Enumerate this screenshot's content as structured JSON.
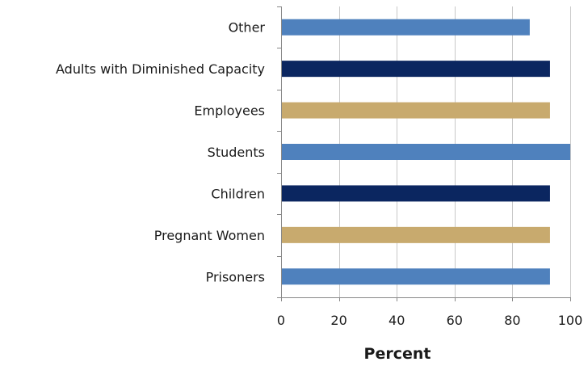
{
  "chart_data": {
    "type": "bar",
    "orientation": "horizontal",
    "title": "",
    "xlabel": "Percent",
    "ylabel": "",
    "xlim": [
      0,
      100
    ],
    "x_ticks": [
      0,
      20,
      40,
      60,
      80,
      100
    ],
    "grid": "vertical",
    "legend": "none",
    "categories": [
      "Other",
      "Adults with Diminished Capacity",
      "Employees",
      "Students",
      "Children",
      "Pregnant Women",
      "Prisoners"
    ],
    "values": [
      86,
      93,
      93,
      100,
      93,
      93,
      93
    ],
    "bar_colors": [
      "#4f81bd",
      "#0b2660",
      "#c8aa6e",
      "#4f81bd",
      "#0b2660",
      "#c8aa6e",
      "#4f81bd"
    ],
    "grid_color": "#c8c8c8",
    "axis_color": "#888888"
  }
}
